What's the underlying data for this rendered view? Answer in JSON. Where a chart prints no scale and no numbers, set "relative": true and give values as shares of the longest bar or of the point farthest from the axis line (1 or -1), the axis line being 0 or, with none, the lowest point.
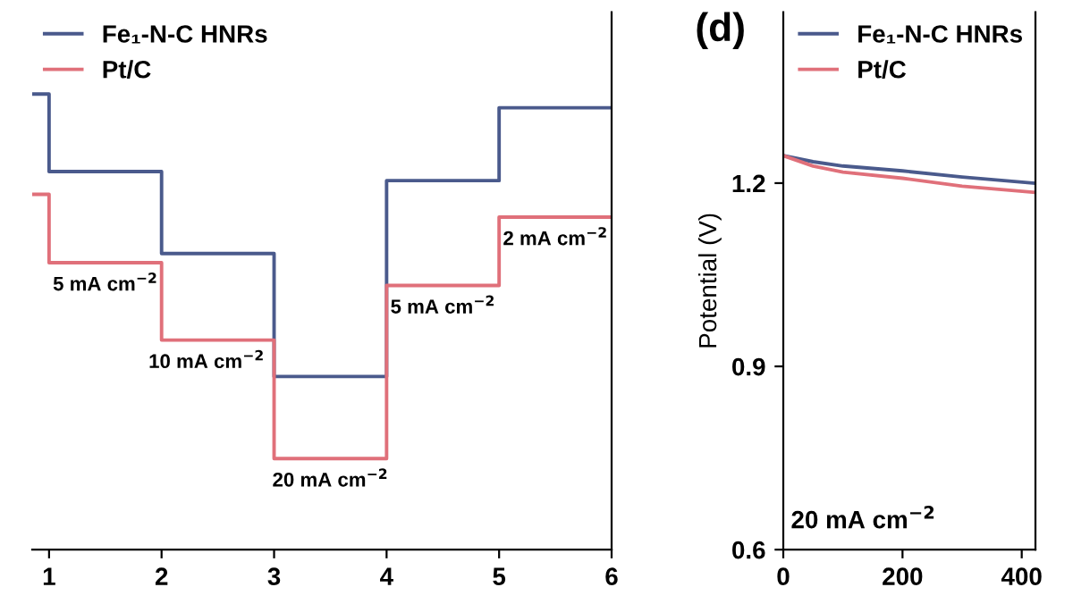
{
  "chart_data": [
    {
      "type": "step",
      "relative": true,
      "x": [
        0.85,
        1,
        2,
        3,
        4,
        5,
        6
      ],
      "xlim": [
        0.85,
        6
      ],
      "xticks": [
        1,
        2,
        3,
        4,
        5,
        6
      ],
      "tick_labels": "x",
      "legend": "top left",
      "series": [
        {
          "name": "Fe₁-N-C HNRs",
          "color": "#4a5a8c",
          "values": [
            1,
            0.83,
            0.65,
            0.38,
            0.81,
            0.97,
            0.97
          ]
        },
        {
          "name": "Pt/C",
          "color": "#e0707a",
          "values": [
            0.78,
            0.63,
            0.46,
            0.2,
            0.58,
            0.73,
            0.73
          ]
        }
      ],
      "annotations": [
        {
          "text": "5 mA cm$^{−2}$",
          "x": 1.5,
          "y": 0.63
        },
        {
          "text": "10 mA cm$^{−2}$",
          "x": 2.4,
          "y": 0.46
        },
        {
          "text": "20 mA cm$^{−2}$",
          "x": 3.5,
          "y": 0.2
        },
        {
          "text": "5 mA cm$^{−2}$",
          "x": 4.5,
          "y": 0.58
        },
        {
          "text": "2 mA cm$^{−2}$",
          "x": 5.5,
          "y": 0.73
        }
      ]
    },
    {
      "type": "line",
      "title": "(d)",
      "ylabel": "Potential (V)",
      "xlim": [
        0,
        423
      ],
      "xticks": [
        0,
        200,
        400
      ],
      "ylim": [
        0.6,
        1.48
      ],
      "yticks": [
        0.6,
        0.9,
        1.2
      ],
      "legend": "top right",
      "series": [
        {
          "name": "Fe₁-N-C HNRs",
          "color": "#4a5a8c",
          "x": [
            0,
            50,
            100,
            200,
            300,
            420
          ],
          "values": [
            1.245,
            1.235,
            1.228,
            1.22,
            1.21,
            1.2
          ]
        },
        {
          "name": "Pt/C",
          "color": "#e0707a",
          "x": [
            0,
            50,
            100,
            200,
            300,
            420
          ],
          "values": [
            1.245,
            1.228,
            1.218,
            1.208,
            1.195,
            1.185
          ]
        }
      ],
      "annotations": [
        "20 mA cm$^{−2}$"
      ]
    }
  ]
}
